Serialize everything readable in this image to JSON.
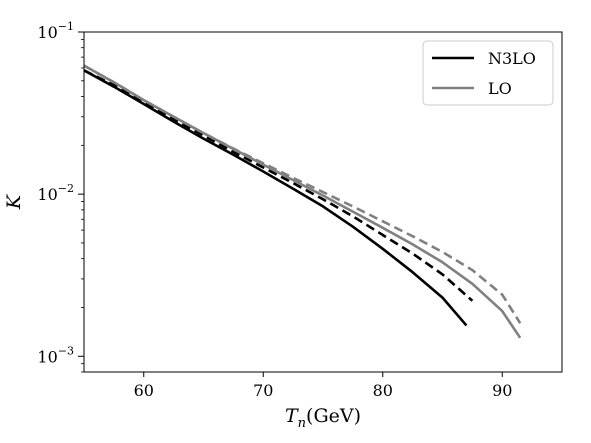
{
  "chart_data": {
    "type": "line",
    "xlabel": "T_n(GeV)",
    "xlabel_main": "T",
    "xlabel_sub": "n",
    "xlabel_unit": "(GeV)",
    "ylabel": "K",
    "xlim": [
      55,
      95
    ],
    "ylim": [
      0.0008,
      0.1
    ],
    "yscale": "log",
    "x_ticks": [
      60,
      70,
      80,
      90
    ],
    "x_tick_labels": [
      "60",
      "70",
      "80",
      "90"
    ],
    "y_ticks": [
      {
        "value": 0.1,
        "base": "10",
        "exp": "−1"
      },
      {
        "value": 0.01,
        "base": "10",
        "exp": "−2"
      },
      {
        "value": 0.001,
        "base": "10",
        "exp": "−3"
      }
    ],
    "grid": false,
    "legend": {
      "placement": "top-right",
      "entries": [
        {
          "label": "N3LO",
          "color": "#000000"
        },
        {
          "label": "LO",
          "color": "#808080"
        }
      ]
    },
    "series": [
      {
        "name": "N3LO",
        "color": "#000000",
        "dash": "solid",
        "x": [
          55,
          57.5,
          60,
          62.5,
          65,
          67.5,
          70,
          72.5,
          75,
          77.5,
          80,
          82.5,
          85,
          87
        ],
        "y": [
          0.058,
          0.046,
          0.036,
          0.028,
          0.022,
          0.0175,
          0.0138,
          0.0108,
          0.0084,
          0.0063,
          0.0046,
          0.0033,
          0.0023,
          0.00155
        ]
      },
      {
        "name": "",
        "color": "#000000",
        "dash": "dashed",
        "x": [
          55,
          57.5,
          60,
          62.5,
          65,
          67.5,
          70,
          72.5,
          75,
          77.5,
          80,
          82.5,
          85,
          87.5
        ],
        "y": [
          0.058,
          0.047,
          0.037,
          0.029,
          0.023,
          0.0182,
          0.0146,
          0.0117,
          0.0093,
          0.0073,
          0.0056,
          0.0043,
          0.0032,
          0.0022
        ]
      },
      {
        "name": "LO",
        "color": "#808080",
        "dash": "solid",
        "x": [
          55,
          57.5,
          60,
          62.5,
          65,
          67.5,
          70,
          72.5,
          75,
          77.5,
          80,
          82.5,
          85,
          87.5,
          90,
          91.5
        ],
        "y": [
          0.062,
          0.049,
          0.038,
          0.03,
          0.0238,
          0.019,
          0.0152,
          0.0122,
          0.0098,
          0.0078,
          0.0062,
          0.0049,
          0.0038,
          0.0028,
          0.0019,
          0.0013
        ]
      },
      {
        "name": "",
        "color": "#808080",
        "dash": "dashed",
        "x": [
          55,
          57.5,
          60,
          62.5,
          65,
          67.5,
          70,
          72.5,
          75,
          77.5,
          80,
          82.5,
          85,
          87.5,
          90,
          91.5
        ],
        "y": [
          0.062,
          0.049,
          0.038,
          0.03,
          0.0238,
          0.0191,
          0.0155,
          0.0126,
          0.0103,
          0.0084,
          0.0068,
          0.0055,
          0.0044,
          0.0034,
          0.0024,
          0.0016
        ]
      }
    ]
  }
}
